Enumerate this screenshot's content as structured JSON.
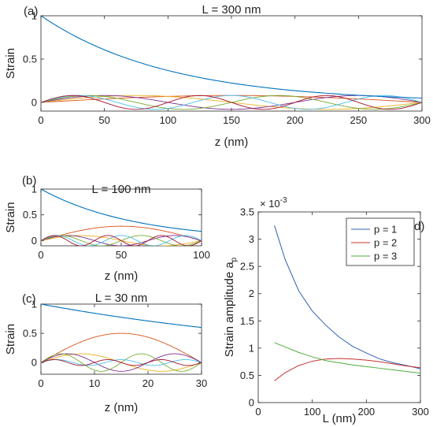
{
  "chart_data": [
    {
      "panel": "(a)",
      "type": "line",
      "title": "L = 300 nm",
      "xlabel": "z (nm)",
      "ylabel": "Strain",
      "xlim": [
        0,
        300
      ],
      "ylim": [
        -0.1,
        1
      ],
      "xticks": [
        "0",
        "50",
        "100",
        "150",
        "200",
        "250",
        "300"
      ],
      "yticks": [
        "0",
        "0.5",
        "1"
      ],
      "L": 300,
      "n_modes": 6,
      "mode_amplitude": 0.08,
      "envelope": {
        "start": 1.0,
        "end": 0.05
      },
      "grid": false
    },
    {
      "panel": "(b)",
      "type": "line",
      "title": "L = 100 nm",
      "xlabel": "z (nm)",
      "ylabel": "Strain",
      "xlim": [
        0,
        100
      ],
      "ylim": [
        -0.1,
        1
      ],
      "xticks": [
        "0",
        "50",
        "100"
      ],
      "yticks": [
        "0",
        "0.5",
        "1"
      ],
      "L": 100,
      "n_modes": 6,
      "mode_amplitudes": [
        0.28,
        0.1,
        0.1,
        0.1,
        0.1,
        0.1
      ],
      "envelope": {
        "start": 1.0,
        "end": 0.18
      },
      "grid": false
    },
    {
      "panel": "(c)",
      "type": "line",
      "title": "L = 30 nm",
      "xlabel": "z (nm)",
      "ylabel": "Strain",
      "xlim": [
        0,
        30
      ],
      "ylim": [
        -0.2,
        1
      ],
      "xticks": [
        "0",
        "10",
        "20",
        "30"
      ],
      "yticks": [
        "0",
        "0.5",
        "1"
      ],
      "L": 30,
      "n_modes": 6,
      "mode_amplitudes": [
        0.5,
        0.15,
        0.15,
        0.15,
        0.05,
        0.05
      ],
      "envelope": {
        "start": 1.0,
        "end": 0.6
      },
      "grid": false
    },
    {
      "panel": "(d)",
      "type": "line",
      "title": "",
      "xlabel": "L (nm)",
      "ylabel": "Strain amplitude a",
      "ylabel_sub": "p",
      "y_multiplier": "× 10",
      "y_multiplier_exp": "-3",
      "xlim": [
        0,
        300
      ],
      "ylim": [
        0,
        3.5
      ],
      "xticks": [
        "0",
        "100",
        "200",
        "300"
      ],
      "yticks": [
        "0",
        "0.5",
        "1",
        "1.5",
        "2",
        "2.5",
        "3",
        "3.5"
      ],
      "legend_position": "top-right",
      "x": [
        30,
        50,
        75,
        100,
        125,
        150,
        175,
        200,
        225,
        250,
        275,
        300
      ],
      "series": [
        {
          "name": "p = 1",
          "color": "#2f5fb3",
          "values": [
            3.25,
            2.62,
            2.05,
            1.68,
            1.42,
            1.2,
            1.03,
            0.91,
            0.8,
            0.73,
            0.68,
            0.62
          ]
        },
        {
          "name": "p = 2",
          "color": "#c83232",
          "values": [
            0.4,
            0.55,
            0.68,
            0.76,
            0.8,
            0.81,
            0.8,
            0.78,
            0.75,
            0.71,
            0.67,
            0.64
          ]
        },
        {
          "name": "p = 3",
          "color": "#4faa3a",
          "values": [
            1.1,
            1.02,
            0.92,
            0.84,
            0.77,
            0.73,
            0.69,
            0.66,
            0.63,
            0.6,
            0.57,
            0.54
          ]
        }
      ],
      "grid": false
    }
  ],
  "colors": {
    "envelope": "#0072bd",
    "modes": [
      "#d95319",
      "#edb120",
      "#7e2f8e",
      "#77ac30",
      "#4dbeee",
      "#a2142f"
    ]
  }
}
